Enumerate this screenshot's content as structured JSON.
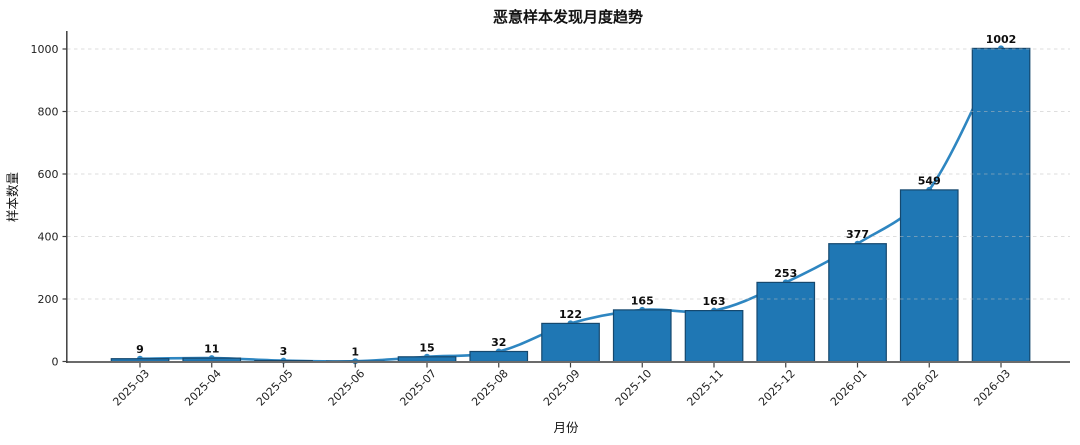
{
  "chart_data": {
    "type": "bar",
    "render": [
      "bar",
      "line-overlay"
    ],
    "title": "恶意样本发现月度趋势",
    "xlabel": "月份",
    "ylabel": "样本数量",
    "categories": [
      "2025-03",
      "2025-04",
      "2025-05",
      "2025-06",
      "2025-07",
      "2025-08",
      "2025-09",
      "2025-10",
      "2025-11",
      "2025-12",
      "2026-01",
      "2026-02",
      "2026-03"
    ],
    "values": [
      9,
      11,
      3,
      1,
      15,
      32,
      122,
      165,
      163,
      253,
      377,
      549,
      1002
    ],
    "value_labels": [
      "9",
      "11",
      "3",
      "1",
      "15",
      "32",
      "122",
      "165",
      "163",
      "253",
      "377",
      "549",
      "1002"
    ],
    "ylim": [
      0,
      1050
    ],
    "y_ticks": [
      0,
      200,
      400,
      600,
      800,
      1000
    ],
    "grid": "horizontal-dashed",
    "legend": "none",
    "colors": {
      "bar_fill": "#1f77b4",
      "bar_edge": "#15486e",
      "line": "#2e86c1",
      "grid": "#bfbfbf",
      "axis_bottom": "#6b6b6b",
      "axis_left": "#3f3f3f",
      "text": "#111111"
    }
  }
}
